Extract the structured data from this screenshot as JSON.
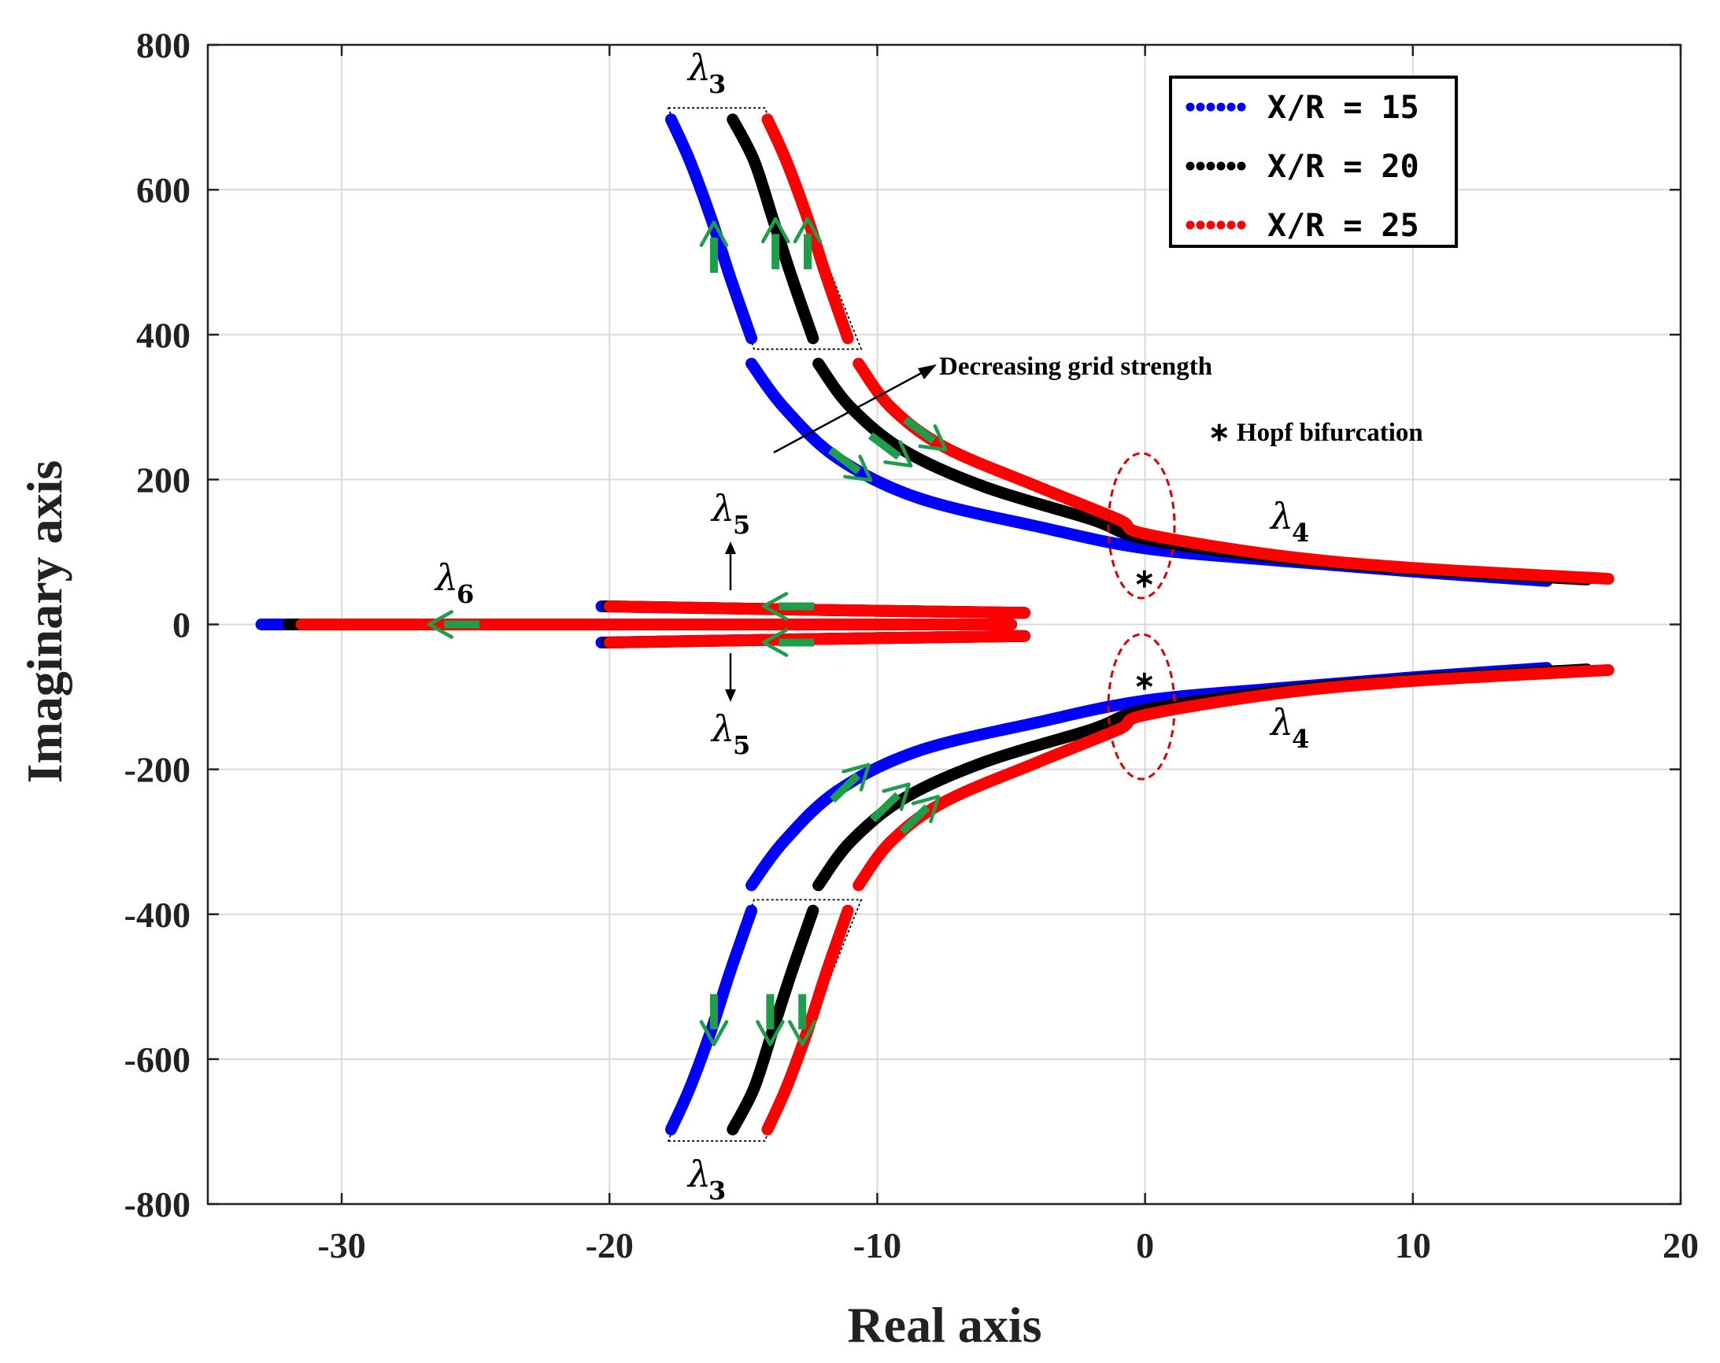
{
  "chart_data": {
    "type": "scatter",
    "title": "",
    "xlabel": "Real axis",
    "ylabel": "Imaginary axis",
    "xlim": [
      -35,
      20
    ],
    "ylim": [
      -800,
      800
    ],
    "xticks": [
      -30,
      -20,
      -10,
      0,
      10,
      20
    ],
    "yticks": [
      800,
      600,
      400,
      200,
      0,
      -200,
      -400,
      -600,
      -800
    ],
    "xtick_labels": [
      "-30",
      "-20",
      "-10",
      "0",
      "10",
      "20"
    ],
    "ytick_labels": [
      "800",
      "600",
      "400",
      "200",
      "0",
      "-200",
      "-400",
      "-600",
      "-800"
    ],
    "grid": true,
    "legend_position": "top-right",
    "series": [
      {
        "name": "X/R = 15",
        "color": "#0000ff",
        "lambda3_upper": [
          [
            -17.7,
            697
          ],
          [
            -17.0,
            640
          ],
          [
            -16.2,
            560
          ],
          [
            -15.5,
            480
          ],
          [
            -14.7,
            395
          ]
        ],
        "lambda4_upper": [
          [
            -14.7,
            360
          ],
          [
            -13.5,
            300
          ],
          [
            -11.5,
            230
          ],
          [
            -8.5,
            175
          ],
          [
            -4.0,
            135
          ],
          [
            0.0,
            105
          ],
          [
            5.0,
            88
          ],
          [
            10.0,
            73
          ],
          [
            15.0,
            60
          ]
        ],
        "lambda5": [
          [
            -20.3,
            25
          ],
          [
            -12.0,
            20
          ],
          [
            -4.5,
            16
          ]
        ],
        "lambda6": [
          [
            -33.0,
            0
          ],
          [
            -25.0,
            0
          ],
          [
            -15.0,
            0
          ],
          [
            -5.0,
            0
          ]
        ]
      },
      {
        "name": "X/R = 20",
        "color": "#000000",
        "lambda3_upper": [
          [
            -15.4,
            697
          ],
          [
            -14.6,
            640
          ],
          [
            -13.9,
            560
          ],
          [
            -13.2,
            480
          ],
          [
            -12.4,
            395
          ]
        ],
        "lambda4_upper": [
          [
            -12.2,
            360
          ],
          [
            -11.0,
            300
          ],
          [
            -9.0,
            240
          ],
          [
            -6.0,
            190
          ],
          [
            -2.0,
            145
          ],
          [
            0.0,
            118
          ],
          [
            5.0,
            92
          ],
          [
            10.0,
            76
          ],
          [
            16.5,
            62
          ]
        ],
        "lambda5": [
          [
            -20.1,
            25
          ],
          [
            -12.0,
            20
          ],
          [
            -4.6,
            16
          ]
        ],
        "lambda6": [
          [
            -32.0,
            0
          ],
          [
            -25.0,
            0
          ],
          [
            -15.0,
            0
          ],
          [
            -5.0,
            0
          ]
        ]
      },
      {
        "name": "X/R = 25",
        "color": "#ff0000",
        "lambda3_upper": [
          [
            -14.1,
            697
          ],
          [
            -13.4,
            640
          ],
          [
            -12.6,
            560
          ],
          [
            -11.9,
            480
          ],
          [
            -11.1,
            395
          ]
        ],
        "lambda4_upper": [
          [
            -10.7,
            360
          ],
          [
            -9.5,
            300
          ],
          [
            -7.5,
            245
          ],
          [
            -4.0,
            190
          ],
          [
            -1.0,
            145
          ],
          [
            0.0,
            125
          ],
          [
            5.0,
            95
          ],
          [
            10.0,
            78
          ],
          [
            17.3,
            63
          ]
        ],
        "lambda5": [
          [
            -20.0,
            25
          ],
          [
            -12.0,
            20
          ],
          [
            -4.5,
            16
          ]
        ],
        "lambda6": [
          [
            -31.5,
            0
          ],
          [
            -25.0,
            0
          ],
          [
            -15.0,
            0
          ],
          [
            -5.0,
            0
          ]
        ]
      }
    ],
    "arrows": [
      {
        "at": [
          -16.1,
          520
        ],
        "dir": "up"
      },
      {
        "at": [
          -13.8,
          525
        ],
        "dir": "up"
      },
      {
        "at": [
          -12.6,
          525
        ],
        "dir": "up"
      },
      {
        "at": [
          -11.0,
          220
        ],
        "dir": "down-right"
      },
      {
        "at": [
          -9.5,
          240
        ],
        "dir": "down-right"
      },
      {
        "at": [
          -8.2,
          262
        ],
        "dir": "down-right"
      },
      {
        "at": [
          -25.8,
          0
        ],
        "dir": "left"
      },
      {
        "at": [
          -13.3,
          25
        ],
        "dir": "left"
      },
      {
        "at": [
          -13.3,
          -25
        ],
        "dir": "left"
      },
      {
        "at": [
          -11.0,
          -218
        ],
        "dir": "up-right"
      },
      {
        "at": [
          -9.5,
          -245
        ],
        "dir": "up-right"
      },
      {
        "at": [
          -8.4,
          -262
        ],
        "dir": "up-right"
      },
      {
        "at": [
          -16.1,
          -545
        ],
        "dir": "down"
      },
      {
        "at": [
          -14.0,
          -545
        ],
        "dir": "down"
      },
      {
        "at": [
          -12.8,
          -545
        ],
        "dir": "down"
      }
    ],
    "arrow_color": "#1e9e4a",
    "annotations": {
      "decreasing": "Decreasing grid strength",
      "hopf": "∗ Hopf bifurcation",
      "asterisk_upper": "∗",
      "asterisk_lower": "∗",
      "lambda3": "λ",
      "lambda4": "λ",
      "lambda5": "λ",
      "lambda6": "λ",
      "sub3": "3",
      "sub4": "4",
      "sub5": "5",
      "sub6": "6"
    }
  }
}
